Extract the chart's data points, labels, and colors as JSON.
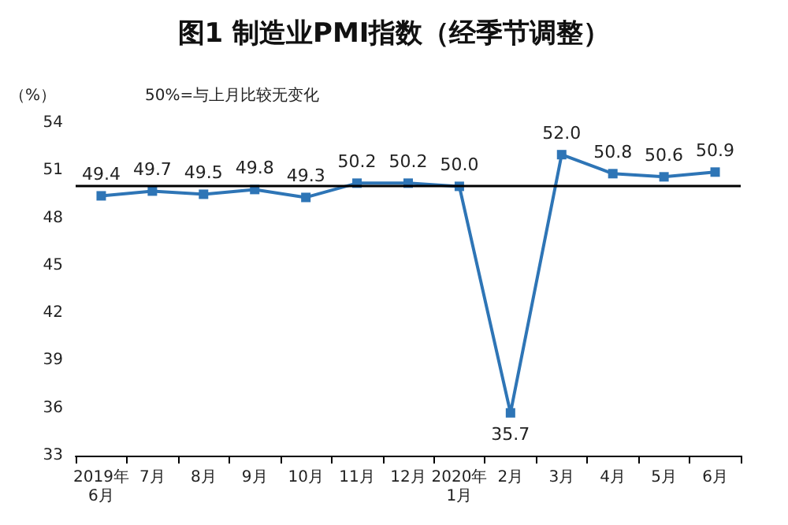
{
  "chart_data": {
    "type": "line",
    "title": "图1 制造业PMI指数（经季节调整）",
    "ylabel": "（%）",
    "categories": [
      "2019年\n6月",
      "7月",
      "8月",
      "9月",
      "10月",
      "11月",
      "12月",
      "2020年\n1月",
      "2月",
      "3月",
      "4月",
      "5月",
      "6月"
    ],
    "series": [
      {
        "color": "#2e75b6",
        "values": [
          49.4,
          49.7,
          49.5,
          49.8,
          49.3,
          50.2,
          50.2,
          50.0,
          35.7,
          52.0,
          50.8,
          50.6,
          50.9
        ],
        "value_labels": [
          "49.4",
          "49.7",
          "49.5",
          "49.8",
          "49.3",
          "50.2",
          "50.2",
          "50.0",
          "35.7",
          "52.0",
          "50.8",
          "50.6",
          "50.9"
        ]
      }
    ],
    "ylim": [
      33,
      54
    ],
    "yticks": [
      33,
      36,
      39,
      42,
      45,
      48,
      51,
      54
    ],
    "ref_lines": [
      {
        "axis": "y",
        "value": 50,
        "label": "50%=与上月比较无变化",
        "color": "#000000"
      }
    ],
    "marker": "square",
    "grid": false
  }
}
